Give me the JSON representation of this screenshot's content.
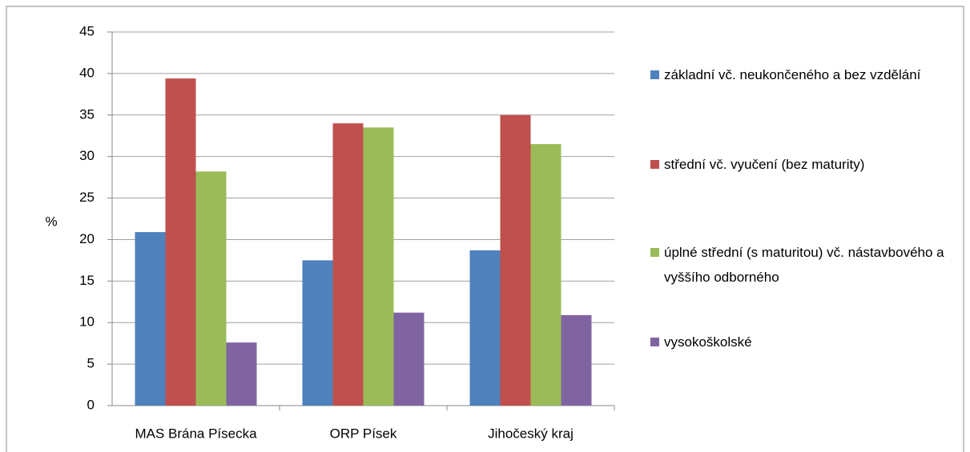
{
  "chart_data": {
    "type": "bar",
    "ylabel": "%",
    "categories": [
      "MAS Brána Písecka",
      "ORP Písek",
      "Jihočeský kraj"
    ],
    "series": [
      {
        "name": "základní vč. neukončeného a bez vzdělání",
        "color": "#4f81bd",
        "values": [
          20.9,
          17.5,
          18.7
        ]
      },
      {
        "name": "střední vč. vyučení (bez maturity)",
        "color": "#c0504d",
        "values": [
          39.4,
          34.0,
          35.0
        ]
      },
      {
        "name": "úplné střední (s maturitou) vč. nástavbového a vyššího odborného",
        "color": "#9bbb59",
        "values": [
          28.2,
          33.5,
          31.5
        ]
      },
      {
        "name": "vysokoškolské",
        "color": "#8064a2",
        "values": [
          7.6,
          11.2,
          10.9
        ]
      }
    ],
    "ylim": [
      0,
      45
    ],
    "yticks": [
      0,
      5,
      10,
      15,
      20,
      25,
      30,
      35,
      40,
      45
    ],
    "grid": true,
    "legend": "right"
  }
}
